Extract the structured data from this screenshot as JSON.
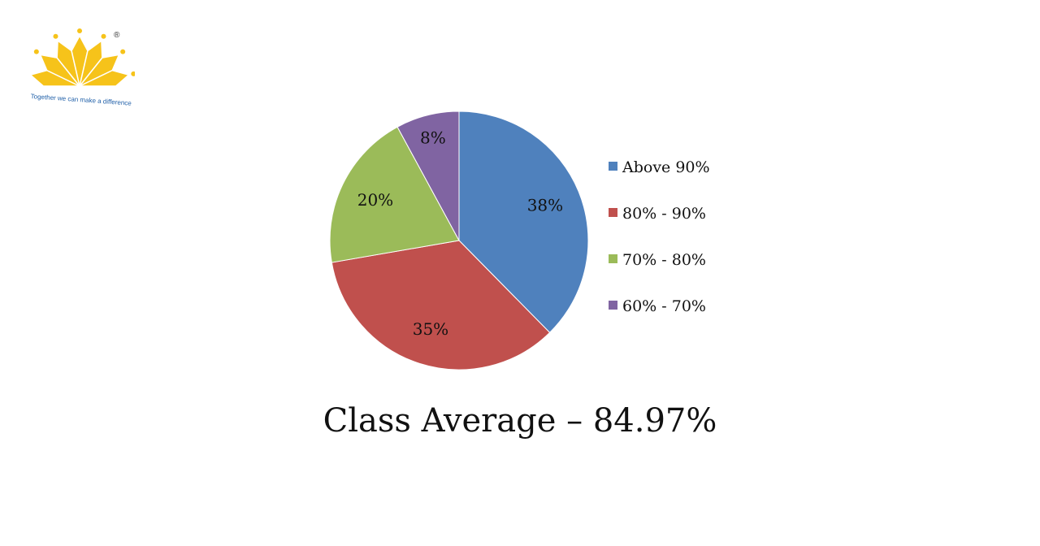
{
  "logo": {
    "icon": "sun-fan-logo",
    "tagline": "Together we can make a difference",
    "registered_mark": "®",
    "color": "#f6c31a"
  },
  "chart_data": {
    "type": "pie",
    "categories": [
      "Above 90%",
      "80% - 90%",
      "70% - 80%",
      "60% - 70%"
    ],
    "values": [
      38,
      35,
      20,
      8
    ],
    "data_labels": [
      "38%",
      "35%",
      "20%",
      "8%"
    ],
    "colors": [
      "#4f81bd",
      "#c0504d",
      "#9bbb59",
      "#8064a2"
    ],
    "legend_position": "right",
    "start_angle": "12 o'clock, clockwise"
  },
  "caption": "Class Average – 84.97%"
}
